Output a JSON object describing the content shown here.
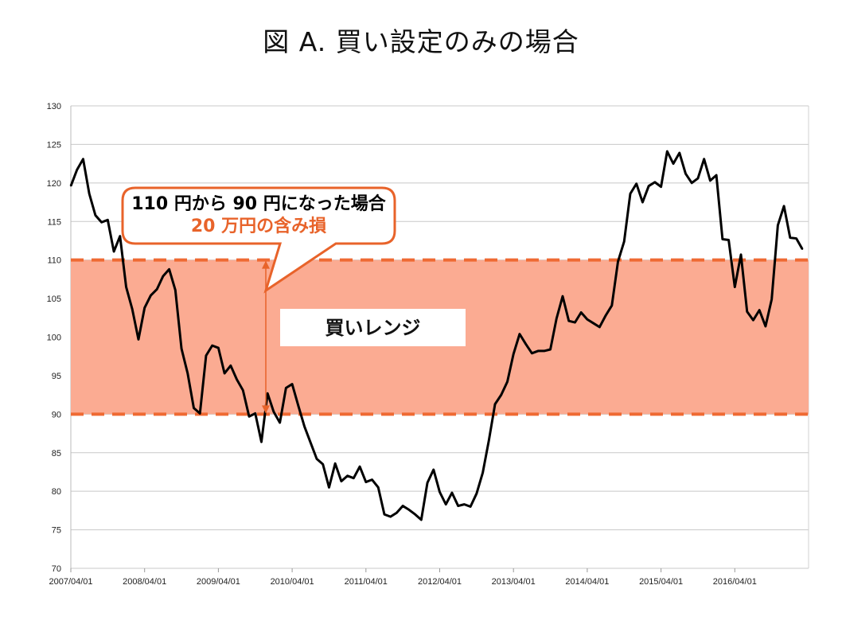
{
  "title": "図 A. 買い設定のみの場合",
  "colors": {
    "line": "#000000",
    "band_fill": "#fbab92",
    "band_border": "#ef6a33",
    "accent": "#e8632a",
    "grid": "#c8c8c8"
  },
  "callout": {
    "line1": "110 円から 90 円になった場合",
    "line2": "20 万円の含み損"
  },
  "range_label": "買いレンジ",
  "chart_data": {
    "type": "line",
    "title": "図 A. 買い設定のみの場合",
    "xlabel": "",
    "ylabel": "",
    "ylim": [
      70,
      130
    ],
    "y_ticks": [
      70,
      75,
      80,
      85,
      90,
      95,
      100,
      105,
      110,
      115,
      120,
      125,
      130
    ],
    "x_range": [
      "2007/04/01",
      "2017/04/01"
    ],
    "x_ticks": [
      "2007/04/01",
      "2008/04/01",
      "2009/04/01",
      "2010/04/01",
      "2011/04/01",
      "2012/04/01",
      "2013/04/01",
      "2014/04/01",
      "2015/04/01",
      "2016/04/01"
    ],
    "grid": true,
    "legend": "none",
    "bands": [
      {
        "from": 90,
        "to": 110,
        "label": "買いレンジ"
      }
    ],
    "series": [
      {
        "x": [
          "2007/04",
          "2007/05",
          "2007/06",
          "2007/07",
          "2007/08",
          "2007/09",
          "2007/10",
          "2007/11",
          "2007/12",
          "2008/01",
          "2008/02",
          "2008/03",
          "2008/04",
          "2008/05",
          "2008/06",
          "2008/07",
          "2008/08",
          "2008/09",
          "2008/10",
          "2008/11",
          "2008/12",
          "2009/01",
          "2009/02",
          "2009/03",
          "2009/04",
          "2009/05",
          "2009/06",
          "2009/07",
          "2009/08",
          "2009/09",
          "2009/10",
          "2009/11",
          "2009/12",
          "2010/01",
          "2010/02",
          "2010/03",
          "2010/04",
          "2010/05",
          "2010/06",
          "2010/07",
          "2010/08",
          "2010/09",
          "2010/10",
          "2010/11",
          "2010/12",
          "2011/01",
          "2011/02",
          "2011/03",
          "2011/04",
          "2011/05",
          "2011/06",
          "2011/07",
          "2011/08",
          "2011/09",
          "2011/10",
          "2011/11",
          "2011/12",
          "2012/01",
          "2012/02",
          "2012/03",
          "2012/04",
          "2012/05",
          "2012/06",
          "2012/07",
          "2012/08",
          "2012/09",
          "2012/10",
          "2012/11",
          "2012/12",
          "2013/01",
          "2013/02",
          "2013/03",
          "2013/04",
          "2013/05",
          "2013/06",
          "2013/07",
          "2013/08",
          "2013/09",
          "2013/10",
          "2013/11",
          "2013/12",
          "2014/01",
          "2014/02",
          "2014/03",
          "2014/04",
          "2014/05",
          "2014/06",
          "2014/07",
          "2014/08",
          "2014/09",
          "2014/10",
          "2014/11",
          "2014/12",
          "2015/01",
          "2015/02",
          "2015/03",
          "2015/04",
          "2015/05",
          "2015/06",
          "2015/07",
          "2015/08",
          "2015/09",
          "2015/10",
          "2015/11",
          "2015/12",
          "2016/01",
          "2016/02",
          "2016/03",
          "2016/04",
          "2016/05",
          "2016/06",
          "2016/07",
          "2016/08",
          "2016/09",
          "2016/10",
          "2016/11",
          "2016/12",
          "2017/01",
          "2017/02",
          "2017/03"
        ],
        "values": [
          119.6,
          121.7,
          123.1,
          118.6,
          115.8,
          114.9,
          115.2,
          111.1,
          113.1,
          106.5,
          103.6,
          99.7,
          103.8,
          105.4,
          106.2,
          107.9,
          108.8,
          106.1,
          98.5,
          95.3,
          90.8,
          90.1,
          97.6,
          98.9,
          98.6,
          95.3,
          96.3,
          94.5,
          93.1,
          89.7,
          90.1,
          86.4,
          92.7,
          90.3,
          88.9,
          93.4,
          93.9,
          91.1,
          88.4,
          86.3,
          84.2,
          83.5,
          80.5,
          83.6,
          81.3,
          82.0,
          81.7,
          83.2,
          81.2,
          81.5,
          80.5,
          77.0,
          76.7,
          77.2,
          78.1,
          77.6,
          77.0,
          76.3,
          81.1,
          82.8,
          79.9,
          78.3,
          79.8,
          78.1,
          78.3,
          78.0,
          79.7,
          82.4,
          86.6,
          91.3,
          92.5,
          94.2,
          97.8,
          100.4,
          99.1,
          97.9,
          98.2,
          98.2,
          98.4,
          102.4,
          105.3,
          102.1,
          101.9,
          103.2,
          102.3,
          101.8,
          101.3,
          102.8,
          104.1,
          109.8,
          112.4,
          118.6,
          119.9,
          117.5,
          119.6,
          120.1,
          119.5,
          124.1,
          122.5,
          123.9,
          121.2,
          120.0,
          120.6,
          123.1,
          120.3,
          121.0,
          112.7,
          112.6,
          106.5,
          110.7,
          103.3,
          102.2,
          103.5,
          101.4,
          104.9,
          114.5,
          117.0,
          112.9,
          112.8,
          111.4
        ]
      }
    ]
  }
}
